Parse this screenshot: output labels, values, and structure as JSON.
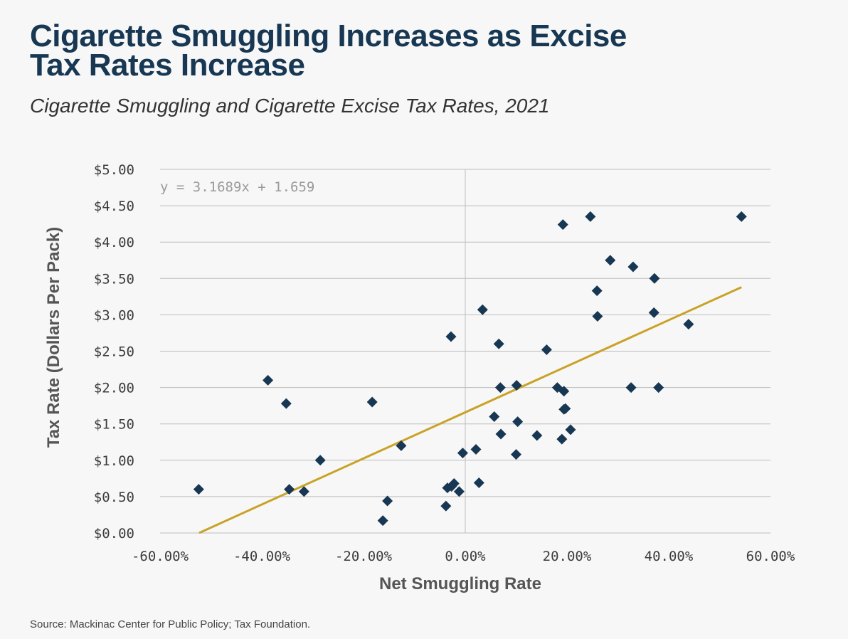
{
  "title_line1": "Cigarette Smuggling Increases as Excise",
  "title_line2": "Tax Rates Increase",
  "subtitle": "Cigarette Smuggling and Cigarette Excise Tax Rates, 2021",
  "source": "Source: Mackinac Center for Public Policy; Tax Foundation.",
  "colors": {
    "title": "#173753",
    "points": "#173753",
    "trend": "#c9a227",
    "grid": "#bdbdbd"
  },
  "chart_data": {
    "type": "scatter",
    "xlabel": "Net Smuggling Rate",
    "ylabel": "Tax Rate (Dollars Per Pack)",
    "xlim": [
      -0.6,
      0.6
    ],
    "ylim": [
      0,
      5
    ],
    "x_ticks": [
      -0.6,
      -0.4,
      -0.2,
      0,
      0.2,
      0.4,
      0.6
    ],
    "x_tick_labels": [
      "-60.00%",
      "-40.00%",
      "-20.00%",
      "0.00%",
      "20.00%",
      "40.00%",
      "60.00%"
    ],
    "y_ticks": [
      0,
      0.5,
      1,
      1.5,
      2,
      2.5,
      3,
      3.5,
      4,
      4.5,
      5
    ],
    "y_tick_labels": [
      "$0.00",
      "$0.50",
      "$1.00",
      "$1.50",
      "$2.00",
      "$2.50",
      "$3.00",
      "$3.50",
      "$4.00",
      "$4.50",
      "$5.00"
    ],
    "grid": true,
    "equation_label": "y = 3.1689x + 1.659",
    "trendline": {
      "slope": 3.1689,
      "intercept": 1.659,
      "x_range": [
        -0.523,
        0.543
      ]
    },
    "points": [
      {
        "x": -0.524,
        "y": 0.6
      },
      {
        "x": -0.388,
        "y": 2.1
      },
      {
        "x": -0.352,
        "y": 1.78
      },
      {
        "x": -0.346,
        "y": 0.6
      },
      {
        "x": -0.317,
        "y": 0.57
      },
      {
        "x": -0.285,
        "y": 1.0
      },
      {
        "x": -0.183,
        "y": 1.8
      },
      {
        "x": -0.162,
        "y": 0.17
      },
      {
        "x": -0.153,
        "y": 0.44
      },
      {
        "x": -0.126,
        "y": 1.2
      },
      {
        "x": -0.038,
        "y": 0.37
      },
      {
        "x": -0.035,
        "y": 0.62
      },
      {
        "x": -0.028,
        "y": 2.7
      },
      {
        "x": -0.027,
        "y": 0.64
      },
      {
        "x": -0.022,
        "y": 0.68
      },
      {
        "x": -0.012,
        "y": 0.57
      },
      {
        "x": -0.005,
        "y": 1.1
      },
      {
        "x": 0.021,
        "y": 1.15
      },
      {
        "x": 0.027,
        "y": 0.69
      },
      {
        "x": 0.034,
        "y": 3.07
      },
      {
        "x": 0.057,
        "y": 1.6
      },
      {
        "x": 0.066,
        "y": 2.6
      },
      {
        "x": 0.069,
        "y": 2.0
      },
      {
        "x": 0.07,
        "y": 1.36
      },
      {
        "x": 0.1,
        "y": 1.08
      },
      {
        "x": 0.101,
        "y": 2.03
      },
      {
        "x": 0.103,
        "y": 1.53
      },
      {
        "x": 0.141,
        "y": 1.34
      },
      {
        "x": 0.16,
        "y": 2.52
      },
      {
        "x": 0.181,
        "y": 2.0
      },
      {
        "x": 0.19,
        "y": 1.29
      },
      {
        "x": 0.192,
        "y": 4.24
      },
      {
        "x": 0.194,
        "y": 1.95
      },
      {
        "x": 0.194,
        "y": 1.7
      },
      {
        "x": 0.197,
        "y": 1.71
      },
      {
        "x": 0.207,
        "y": 1.42
      },
      {
        "x": 0.246,
        "y": 4.35
      },
      {
        "x": 0.259,
        "y": 3.33
      },
      {
        "x": 0.26,
        "y": 2.98
      },
      {
        "x": 0.285,
        "y": 3.75
      },
      {
        "x": 0.326,
        "y": 2.0
      },
      {
        "x": 0.33,
        "y": 3.66
      },
      {
        "x": 0.371,
        "y": 3.03
      },
      {
        "x": 0.372,
        "y": 3.5
      },
      {
        "x": 0.38,
        "y": 2.0
      },
      {
        "x": 0.439,
        "y": 2.87
      },
      {
        "x": 0.543,
        "y": 4.35
      }
    ]
  }
}
